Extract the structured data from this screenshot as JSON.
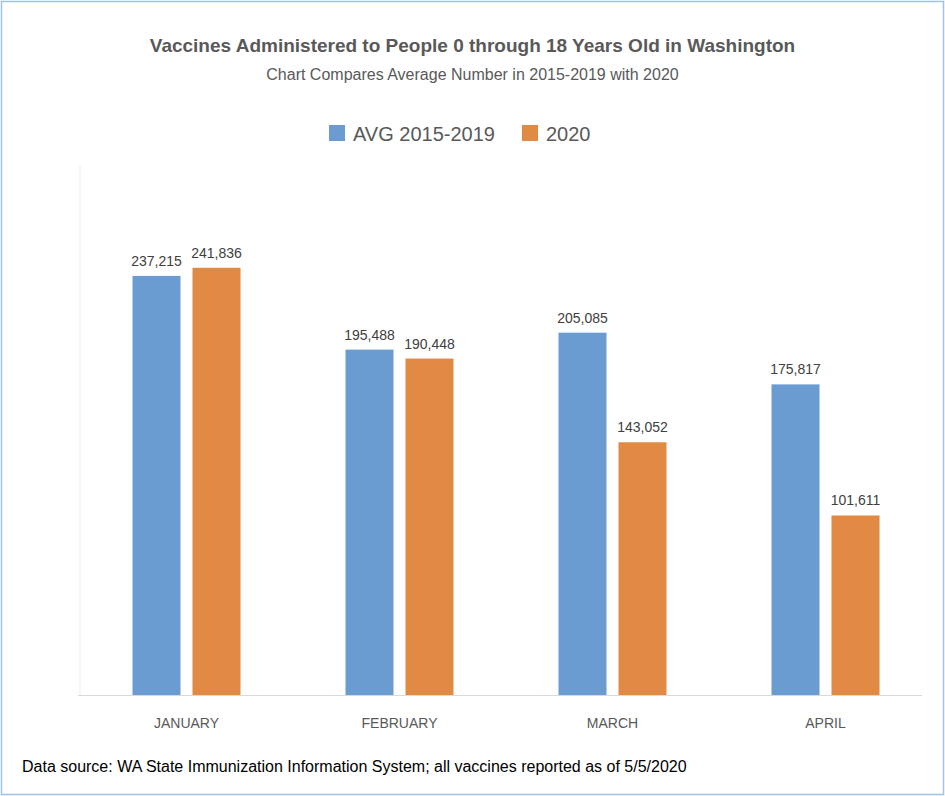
{
  "chart_data": {
    "type": "bar",
    "title": "Vaccines Administered to People 0 through 18 Years Old in Washington",
    "subtitle": "Chart Compares Average Number in 2015-2019 with 2020",
    "source": "Data source: WA State Immunization Information System; all vaccines reported as of 5/5/2020",
    "categories": [
      "JANUARY",
      "FEBRUARY",
      "MARCH",
      "APRIL"
    ],
    "series": [
      {
        "name": "AVG 2015-2019",
        "color": "#6a9bd1",
        "values": [
          237215,
          195488,
          205085,
          175817
        ],
        "value_labels": [
          "237,215",
          "195,488",
          "205,085",
          "175,817"
        ]
      },
      {
        "name": "2020",
        "color": "#e08a43",
        "values": [
          241836,
          190448,
          143052,
          101611
        ],
        "value_labels": [
          "241,836",
          "190,448",
          "143,052",
          "101,611"
        ]
      }
    ],
    "ylim": [
      0,
      300000
    ],
    "grid": false,
    "legend": "top",
    "data_labels": true,
    "tick_labels": "x"
  }
}
